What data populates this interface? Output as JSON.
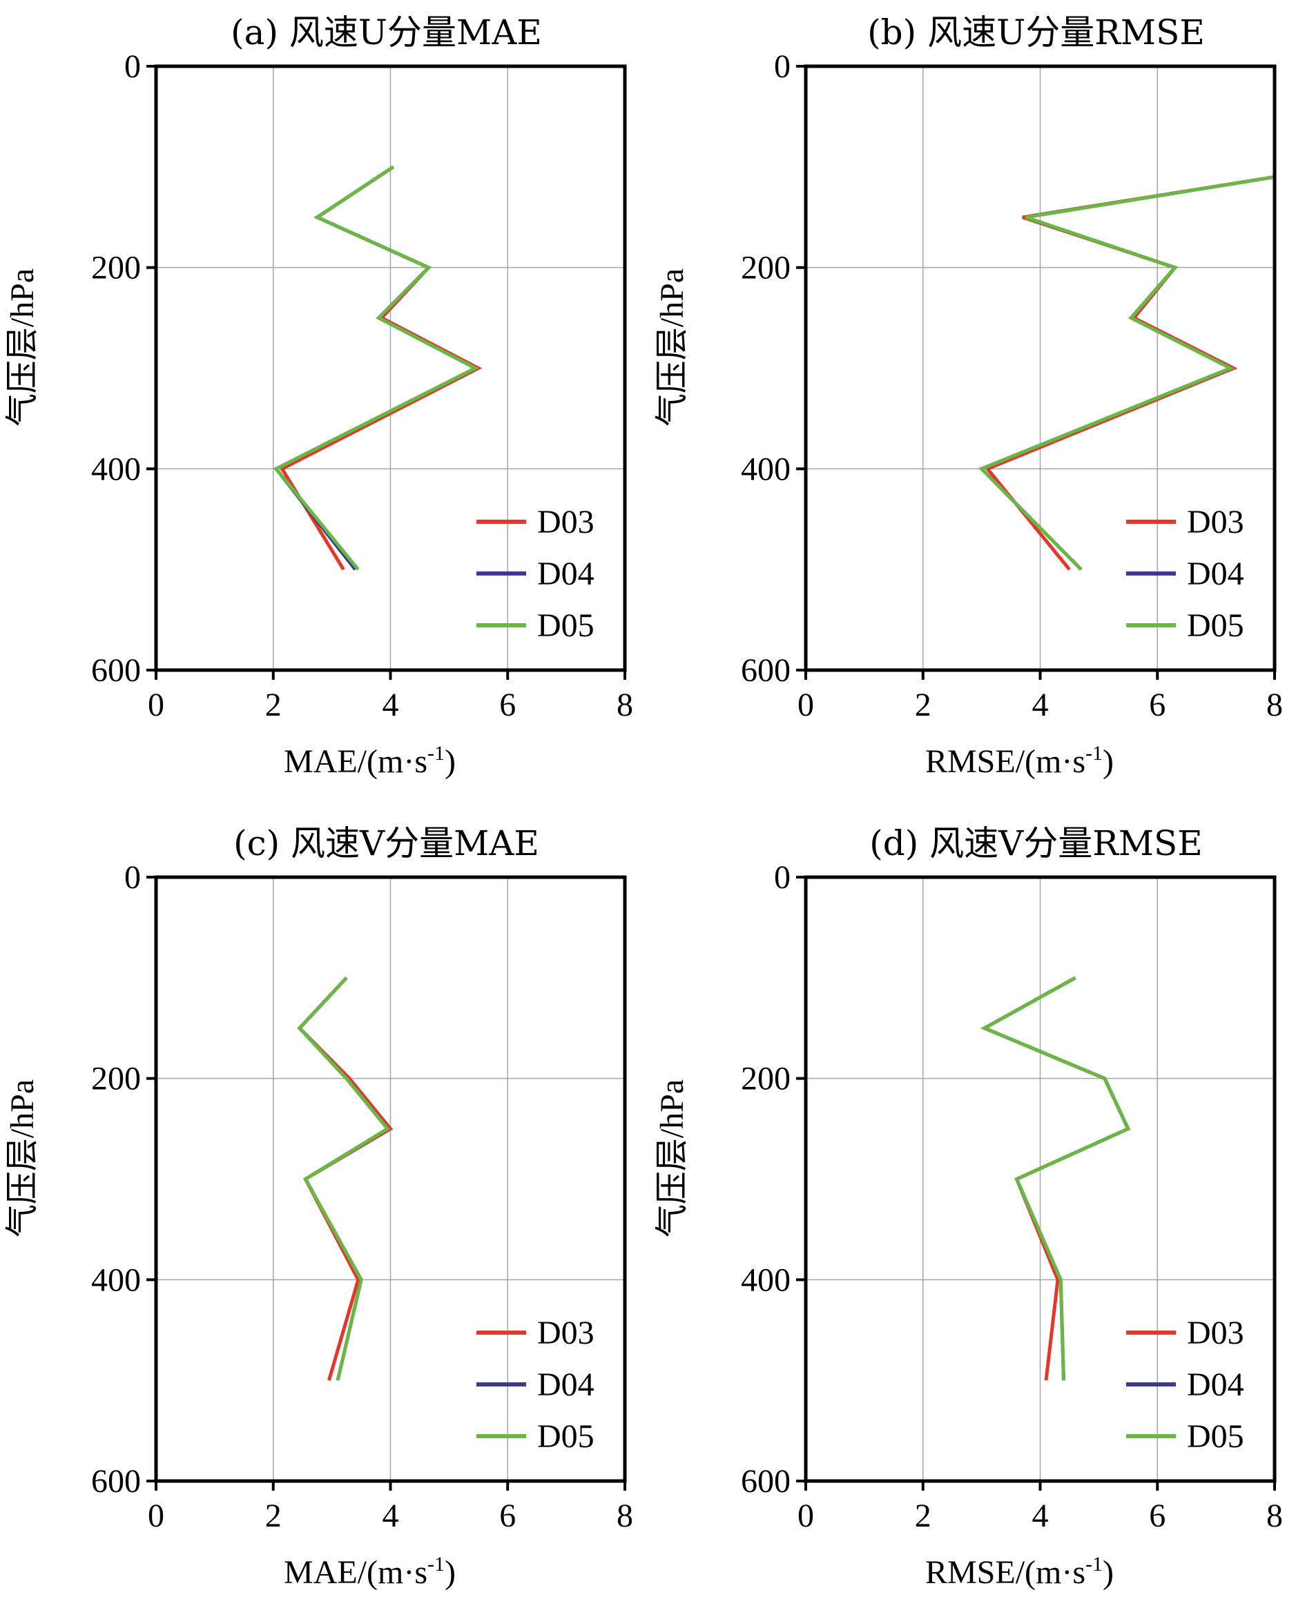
{
  "chart_data": [
    {
      "type": "line",
      "title": "(a) 风速U分量MAE",
      "xlabel": "MAE/(m·s",
      "xlabel_sup": "-1",
      "xlabel_tail": ")",
      "ylabel": "气压层/hPa",
      "xlim": [
        0,
        8
      ],
      "ylim": [
        600,
        0
      ],
      "x_ticks": [
        "0",
        "2",
        "4",
        "6",
        "8"
      ],
      "y_ticks": [
        "0",
        "200",
        "400",
        "600"
      ],
      "grid": true,
      "legend_position": "bottom-right",
      "y": [
        100,
        150,
        200,
        250,
        300,
        400,
        500
      ],
      "series": [
        {
          "name": "D03",
          "color": "#e8352a",
          "values": [
            4.05,
            2.75,
            4.65,
            3.85,
            5.5,
            2.15,
            3.2
          ]
        },
        {
          "name": "D04",
          "color": "#3a3a8f",
          "values": [
            4.05,
            2.75,
            4.65,
            3.8,
            5.45,
            2.05,
            3.4
          ]
        },
        {
          "name": "D05",
          "color": "#6ab744",
          "values": [
            4.05,
            2.75,
            4.65,
            3.8,
            5.45,
            2.05,
            3.45
          ]
        }
      ]
    },
    {
      "type": "line",
      "title": "(b) 风速U分量RMSE",
      "xlabel": "RMSE/(m·s",
      "xlabel_sup": "-1",
      "xlabel_tail": ")",
      "ylabel": "气压层/hPa",
      "xlim": [
        0,
        8
      ],
      "ylim": [
        600,
        0
      ],
      "x_ticks": [
        "0",
        "2",
        "4",
        "6",
        "8"
      ],
      "y_ticks": [
        "0",
        "200",
        "400",
        "600"
      ],
      "grid": true,
      "legend_position": "bottom-right",
      "y": [
        110,
        150,
        200,
        250,
        300,
        400,
        500
      ],
      "series": [
        {
          "name": "D03",
          "color": "#e8352a",
          "values": [
            8.0,
            3.7,
            6.3,
            5.6,
            7.3,
            3.1,
            4.5
          ]
        },
        {
          "name": "D04",
          "color": "#3a3a8f",
          "values": [
            8.0,
            3.75,
            6.3,
            5.55,
            7.25,
            3.0,
            4.7
          ]
        },
        {
          "name": "D05",
          "color": "#6ab744",
          "values": [
            8.0,
            3.75,
            6.3,
            5.55,
            7.25,
            3.0,
            4.7
          ]
        }
      ]
    },
    {
      "type": "line",
      "title": "(c) 风速V分量MAE",
      "xlabel": "MAE/(m·s",
      "xlabel_sup": "-1",
      "xlabel_tail": ")",
      "ylabel": "气压层/hPa",
      "xlim": [
        0,
        8
      ],
      "ylim": [
        600,
        0
      ],
      "x_ticks": [
        "0",
        "2",
        "4",
        "6",
        "8"
      ],
      "y_ticks": [
        "0",
        "200",
        "400",
        "600"
      ],
      "grid": true,
      "legend_position": "bottom-right",
      "y": [
        100,
        150,
        200,
        250,
        300,
        400,
        500
      ],
      "series": [
        {
          "name": "D03",
          "color": "#e8352a",
          "values": [
            3.25,
            2.45,
            3.3,
            4.0,
            2.55,
            3.45,
            2.95
          ]
        },
        {
          "name": "D04",
          "color": "#3a3a8f",
          "values": [
            3.25,
            2.45,
            3.25,
            3.95,
            2.55,
            3.5,
            3.1
          ]
        },
        {
          "name": "D05",
          "color": "#6ab744",
          "values": [
            3.25,
            2.45,
            3.25,
            3.95,
            2.55,
            3.5,
            3.1
          ]
        }
      ]
    },
    {
      "type": "line",
      "title": "(d) 风速V分量RMSE",
      "xlabel": "RMSE/(m·s",
      "xlabel_sup": "-1",
      "xlabel_tail": ")",
      "ylabel": "气压层/hPa",
      "xlim": [
        0,
        8
      ],
      "ylim": [
        600,
        0
      ],
      "x_ticks": [
        "0",
        "2",
        "4",
        "6",
        "8"
      ],
      "y_ticks": [
        "0",
        "200",
        "400",
        "600"
      ],
      "grid": true,
      "legend_position": "bottom-right",
      "y": [
        100,
        150,
        200,
        250,
        300,
        400,
        500
      ],
      "series": [
        {
          "name": "D03",
          "color": "#e8352a",
          "values": [
            4.6,
            3.05,
            5.1,
            5.5,
            3.6,
            4.3,
            4.1
          ]
        },
        {
          "name": "D04",
          "color": "#3a3a8f",
          "values": [
            4.6,
            3.05,
            5.1,
            5.5,
            3.6,
            4.35,
            4.4
          ]
        },
        {
          "name": "D05",
          "color": "#6ab744",
          "values": [
            4.6,
            3.05,
            5.1,
            5.5,
            3.6,
            4.35,
            4.4
          ]
        }
      ]
    }
  ]
}
